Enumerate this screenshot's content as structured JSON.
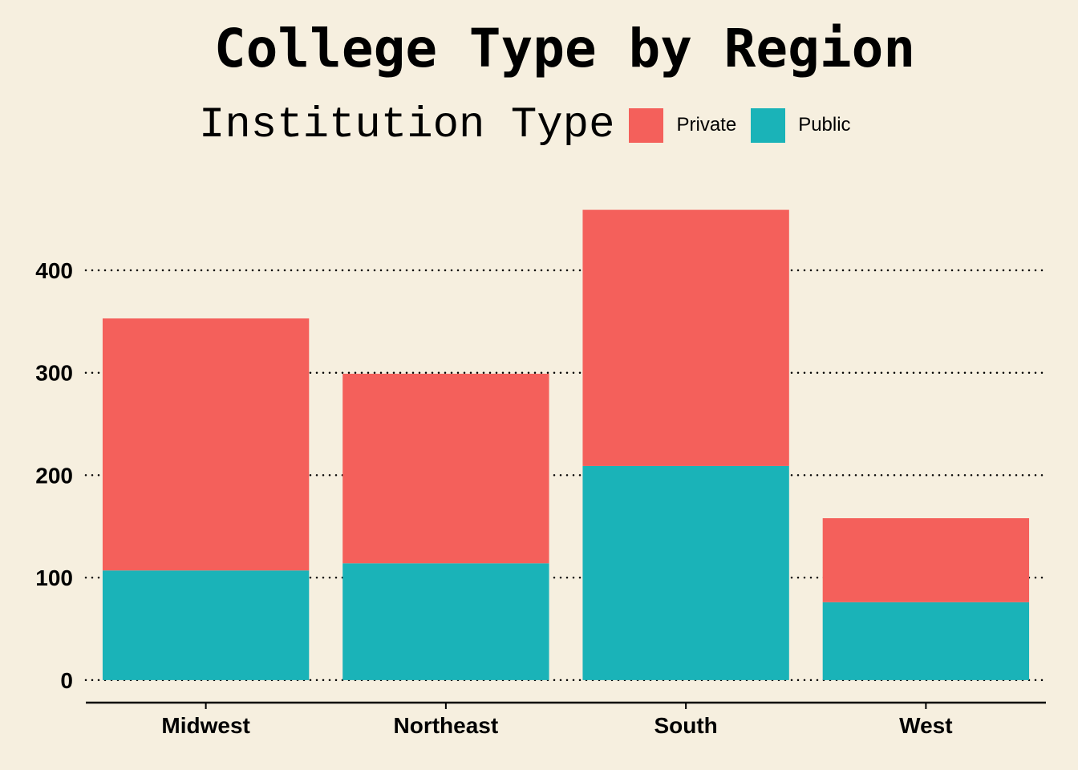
{
  "chart_data": {
    "type": "bar",
    "stacked": true,
    "title": "College Type by Region",
    "xlabel": "",
    "ylabel": "",
    "categories": [
      "Midwest",
      "Northeast",
      "South",
      "West"
    ],
    "series": [
      {
        "name": "Public",
        "color": "#1ab3b8",
        "values": [
          107,
          114,
          209,
          76
        ]
      },
      {
        "name": "Private",
        "color": "#f4605b",
        "values": [
          246,
          185,
          250,
          82
        ]
      }
    ],
    "yticks": [
      0,
      100,
      200,
      300,
      400
    ],
    "ylim": [
      -22,
      490
    ],
    "grid": "horizontal-dotted",
    "legend": {
      "title": "Institution Type",
      "placement": "top",
      "entries": [
        {
          "label": "Private",
          "color": "#f4605b"
        },
        {
          "label": "Public",
          "color": "#1ab3b8"
        }
      ]
    }
  }
}
